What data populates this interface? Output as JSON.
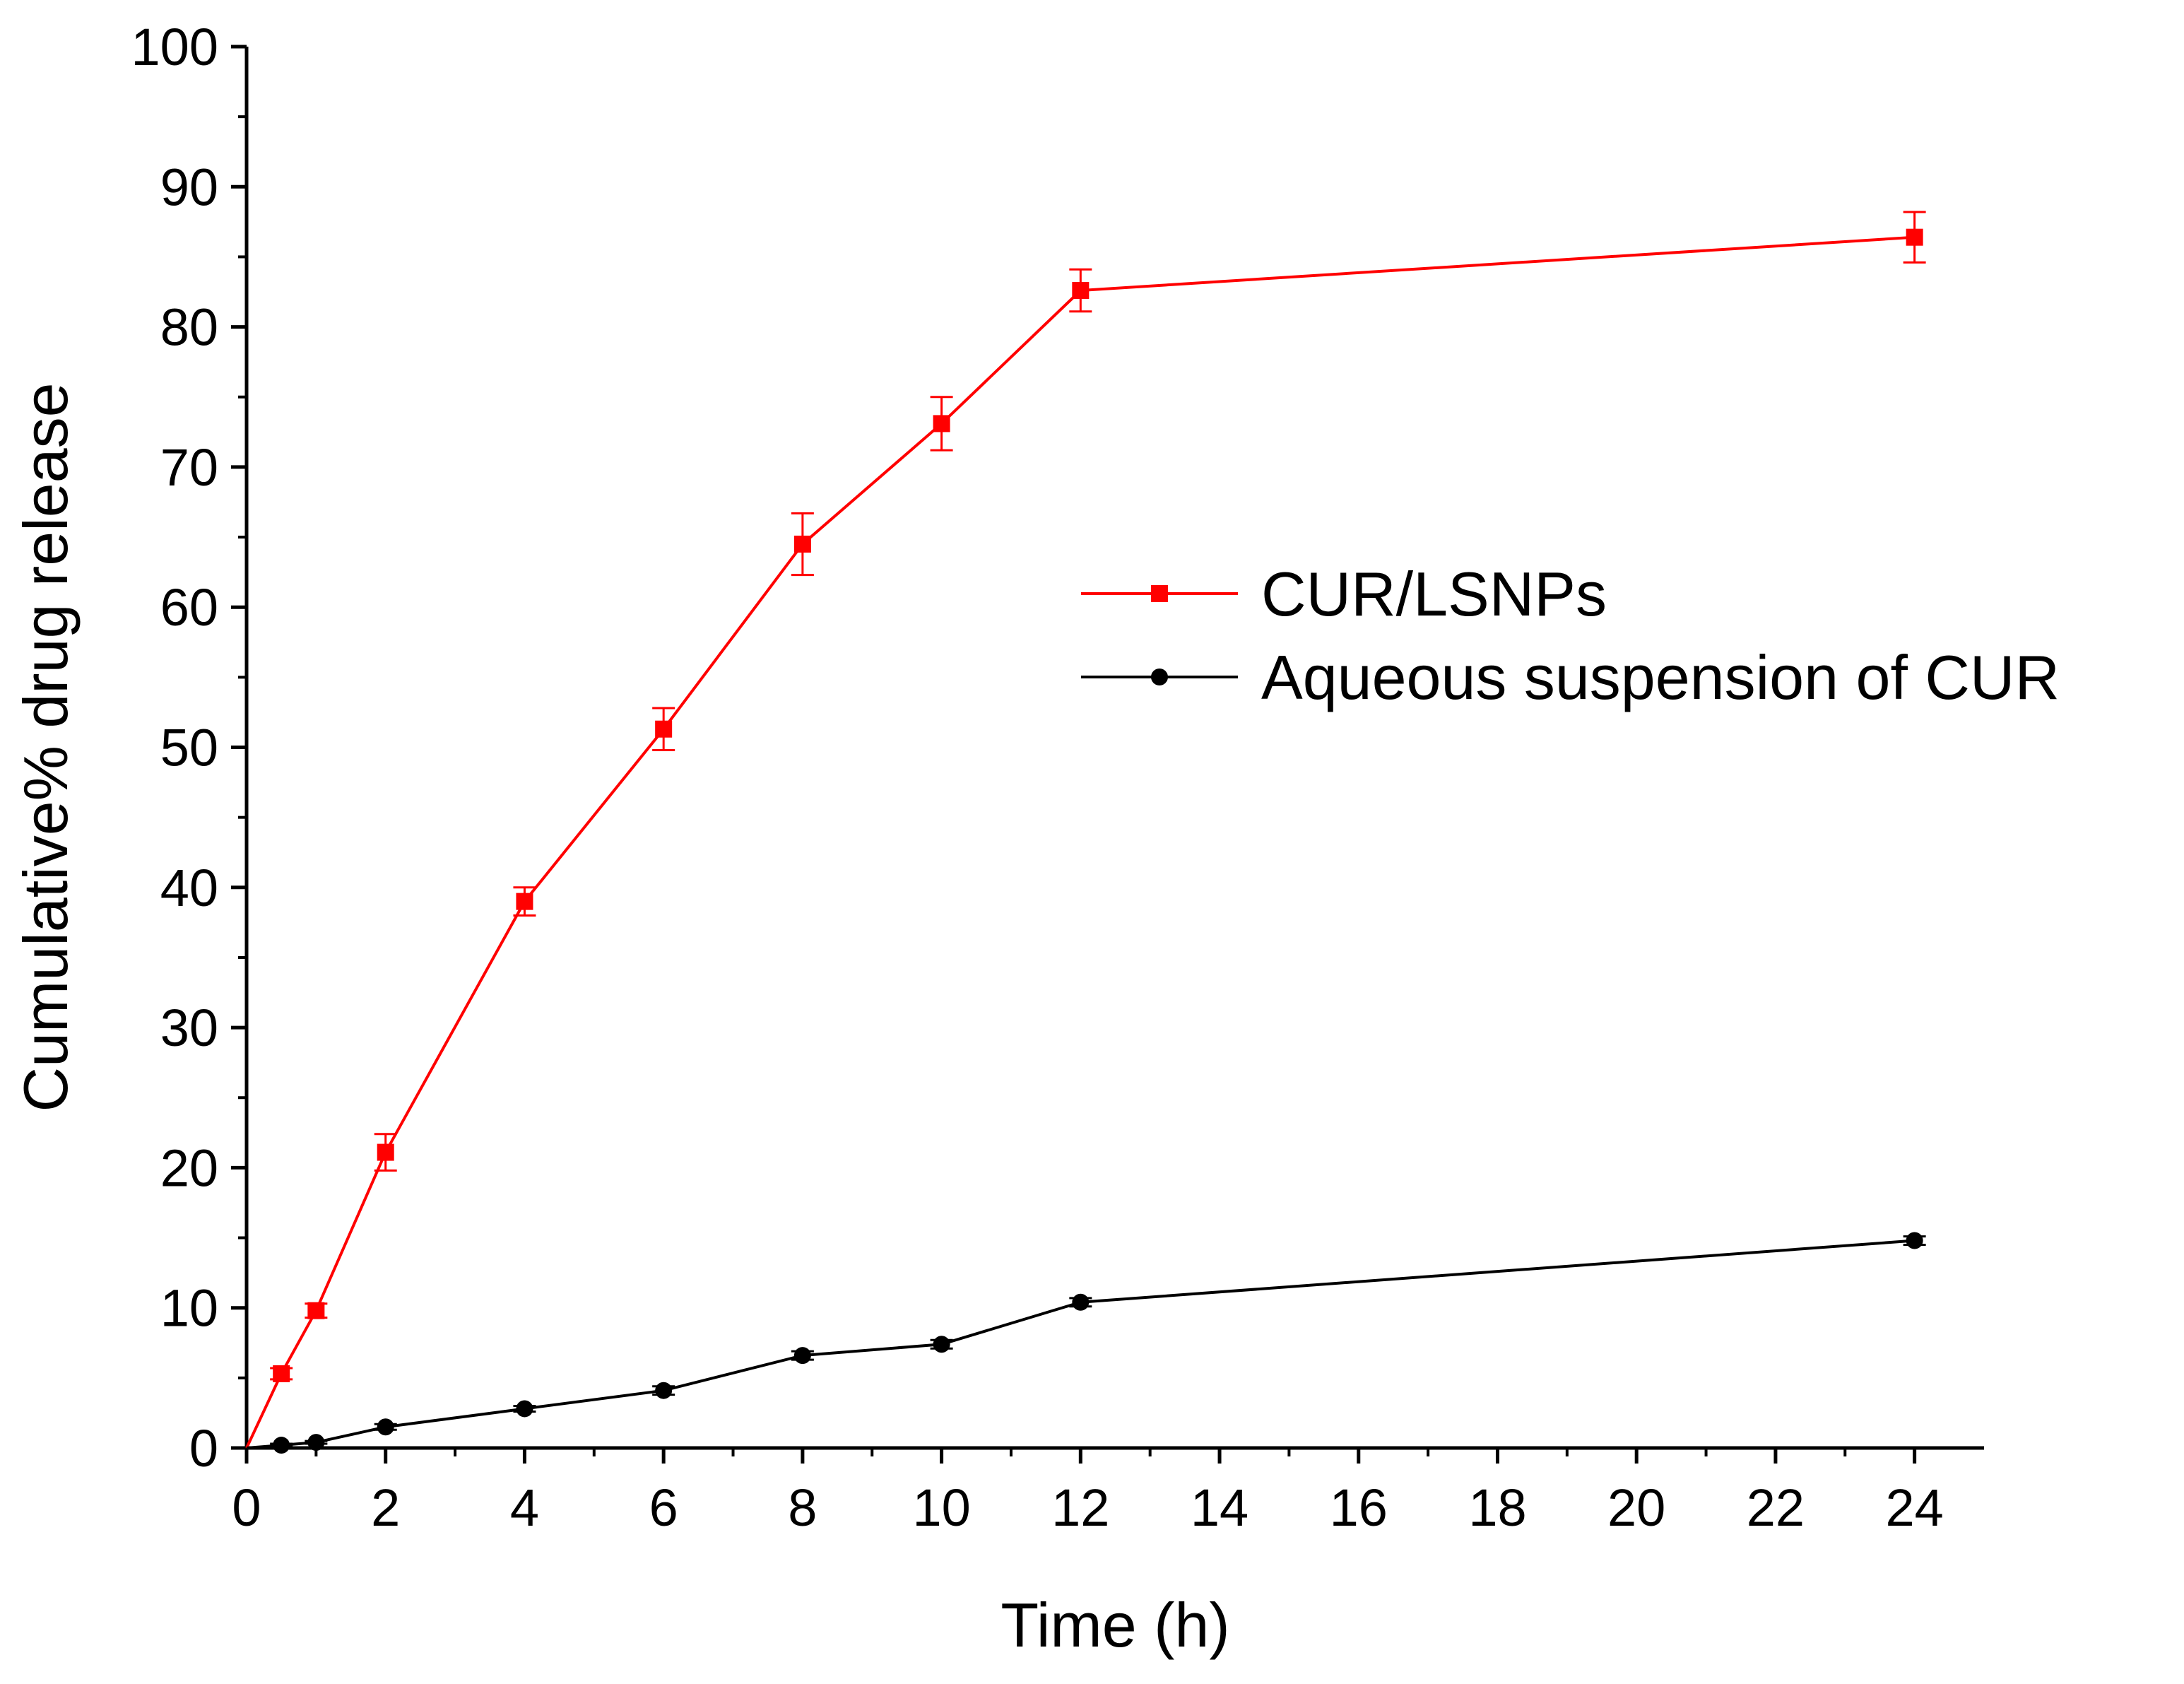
{
  "chart_data": {
    "type": "line",
    "title": "",
    "xlabel": "Time (h)",
    "ylabel": "Cumulative% drug release",
    "xlim": [
      0,
      25
    ],
    "ylim": [
      0,
      100
    ],
    "x_ticks": [
      0,
      2,
      4,
      6,
      8,
      10,
      12,
      14,
      16,
      18,
      20,
      22,
      24
    ],
    "x_tick_labels": [
      "0",
      "2",
      "4",
      "6",
      "8",
      "10",
      "12",
      "14",
      "16",
      "18",
      "20",
      "22",
      "24"
    ],
    "y_ticks": [
      0,
      10,
      20,
      30,
      40,
      50,
      60,
      70,
      80,
      90,
      100
    ],
    "y_tick_labels": [
      "0",
      "10",
      "20",
      "30",
      "40",
      "50",
      "60",
      "70",
      "80",
      "90",
      "100"
    ],
    "grid": false,
    "legend_position": "center-right",
    "series": [
      {
        "name": "CUR/LSNPs",
        "color": "#ff0000",
        "marker": "square",
        "x": [
          0,
          0.5,
          1,
          2,
          4,
          6,
          8,
          10,
          12,
          24
        ],
        "y": [
          0,
          5.3,
          9.8,
          21.1,
          39.0,
          51.3,
          64.5,
          73.1,
          82.6,
          86.4
        ],
        "error": [
          0,
          0.4,
          0.5,
          1.3,
          1.0,
          1.5,
          2.2,
          1.9,
          1.5,
          1.8
        ]
      },
      {
        "name": "Aqueous suspension of CUR",
        "color": "#000000",
        "marker": "circle",
        "x": [
          0,
          0.5,
          1,
          2,
          4,
          6,
          8,
          10,
          12,
          24
        ],
        "y": [
          0,
          0.2,
          0.4,
          1.5,
          2.8,
          4.1,
          6.6,
          7.4,
          10.4,
          14.8
        ],
        "error": [
          0,
          0.1,
          0.1,
          0.2,
          0.2,
          0.3,
          0.3,
          0.3,
          0.3,
          0.3
        ]
      }
    ]
  }
}
